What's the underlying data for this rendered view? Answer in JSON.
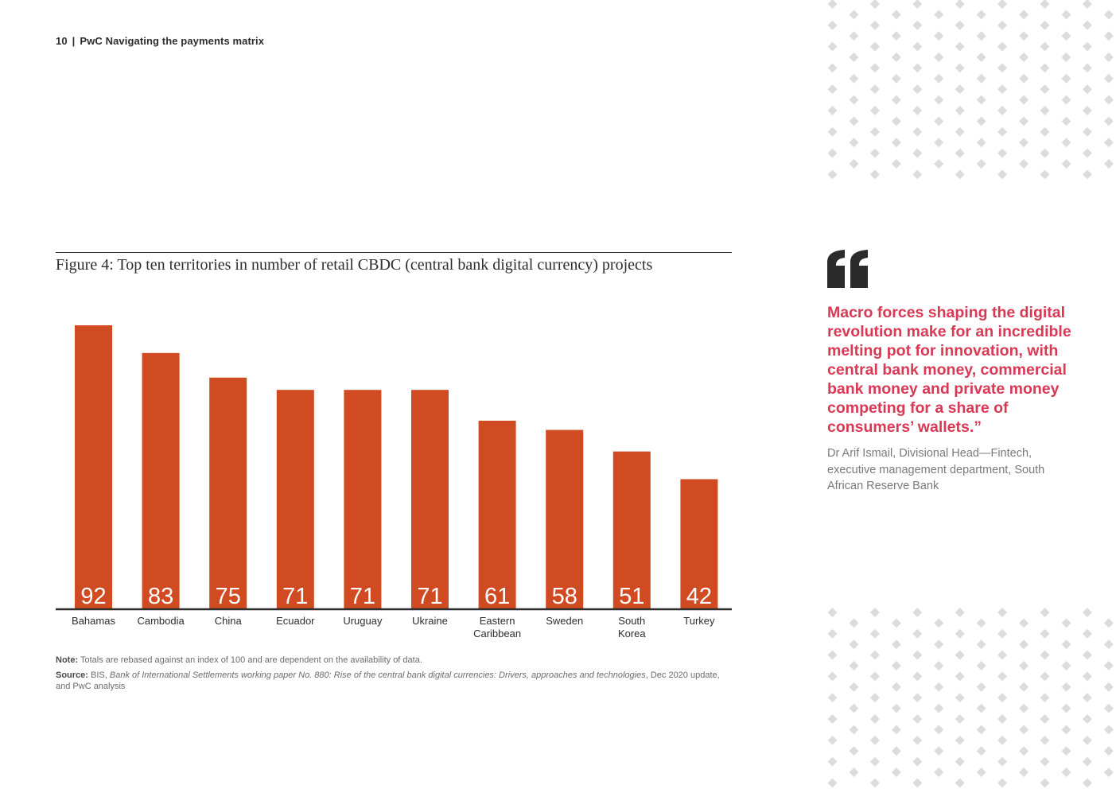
{
  "header": {
    "page_number": "10",
    "separator": "|",
    "document_title": "PwC Navigating the payments matrix"
  },
  "figure": {
    "title": "Figure 4: Top ten territories in number of retail CBDC (central bank digital currency) projects"
  },
  "chart_data": {
    "type": "bar",
    "title": "Figure 4: Top ten territories in number of retail CBDC (central bank digital currency) projects",
    "categories": [
      [
        "Bahamas"
      ],
      [
        "Cambodia"
      ],
      [
        "China"
      ],
      [
        "Ecuador"
      ],
      [
        "Uruguay"
      ],
      [
        "Ukraine"
      ],
      [
        "Eastern",
        "Caribbean"
      ],
      [
        "Sweden"
      ],
      [
        "South",
        "Korea"
      ],
      [
        "Turkey"
      ]
    ],
    "values": [
      92,
      83,
      75,
      71,
      71,
      71,
      61,
      58,
      51,
      42
    ],
    "ylim": [
      0,
      100
    ],
    "xlabel": "",
    "ylabel": "",
    "grid": false,
    "bar_color": "#d04a22",
    "value_label_color": "#ffffff"
  },
  "notes": {
    "note_label": "Note:",
    "note_text": "Totals are rebased against an index of 100 and are dependent on the availability of data.",
    "source_label": "Source:",
    "source_prefix": "BIS,",
    "source_title": "Bank of International Settlements working paper No. 880: Rise of the central bank digital currencies: Drivers, approaches and technologies",
    "source_suffix": ", Dec 2020 update, and PwC analysis"
  },
  "quote": {
    "icon": "quote-mark-icon",
    "text": "Macro forces shaping the digital revolution make for an incredible melting pot for innovation, with central bank money, commercial bank money and private money competing for a share of consumers’ wallets.”",
    "attribution": "Dr Arif Ismail, Divisional Head—Fintech, executive management department, South African Reserve Bank",
    "color": "#d93954"
  },
  "decor": {
    "pattern_icon": "diamond-dot-pattern",
    "pattern_color": "#dcdcdc"
  }
}
